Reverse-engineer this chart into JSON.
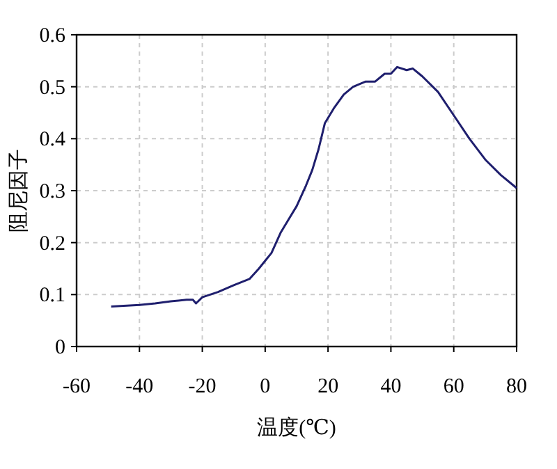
{
  "chart_data": {
    "type": "line",
    "xlabel": "温度(℃)",
    "ylabel": "阻尼因子",
    "xlim": [
      -60,
      80
    ],
    "xticks": [
      -60,
      -40,
      -20,
      0,
      20,
      40,
      60,
      80
    ],
    "ylim": [
      0,
      0.6
    ],
    "yticks": [
      0,
      0.1,
      0.2,
      0.3,
      0.4,
      0.5,
      0.6
    ],
    "grid": true,
    "x": [
      -49,
      -40,
      -35,
      -30,
      -25,
      -23,
      -22,
      -20,
      -15,
      -10,
      -5,
      -2,
      0,
      2,
      5,
      8,
      10,
      13,
      15,
      17,
      19,
      22,
      25,
      28,
      30,
      32,
      35,
      38,
      40,
      42,
      45,
      47,
      50,
      55,
      60,
      65,
      70,
      75,
      80
    ],
    "series": [
      {
        "color": "#1f1f6e",
        "values": [
          0.077,
          0.08,
          0.083,
          0.087,
          0.09,
          0.09,
          0.083,
          0.095,
          0.105,
          0.118,
          0.13,
          0.15,
          0.165,
          0.18,
          0.22,
          0.25,
          0.27,
          0.31,
          0.34,
          0.38,
          0.43,
          0.46,
          0.485,
          0.5,
          0.505,
          0.51,
          0.51,
          0.525,
          0.525,
          0.538,
          0.532,
          0.535,
          0.52,
          0.49,
          0.445,
          0.4,
          0.36,
          0.33,
          0.305
        ]
      }
    ]
  }
}
